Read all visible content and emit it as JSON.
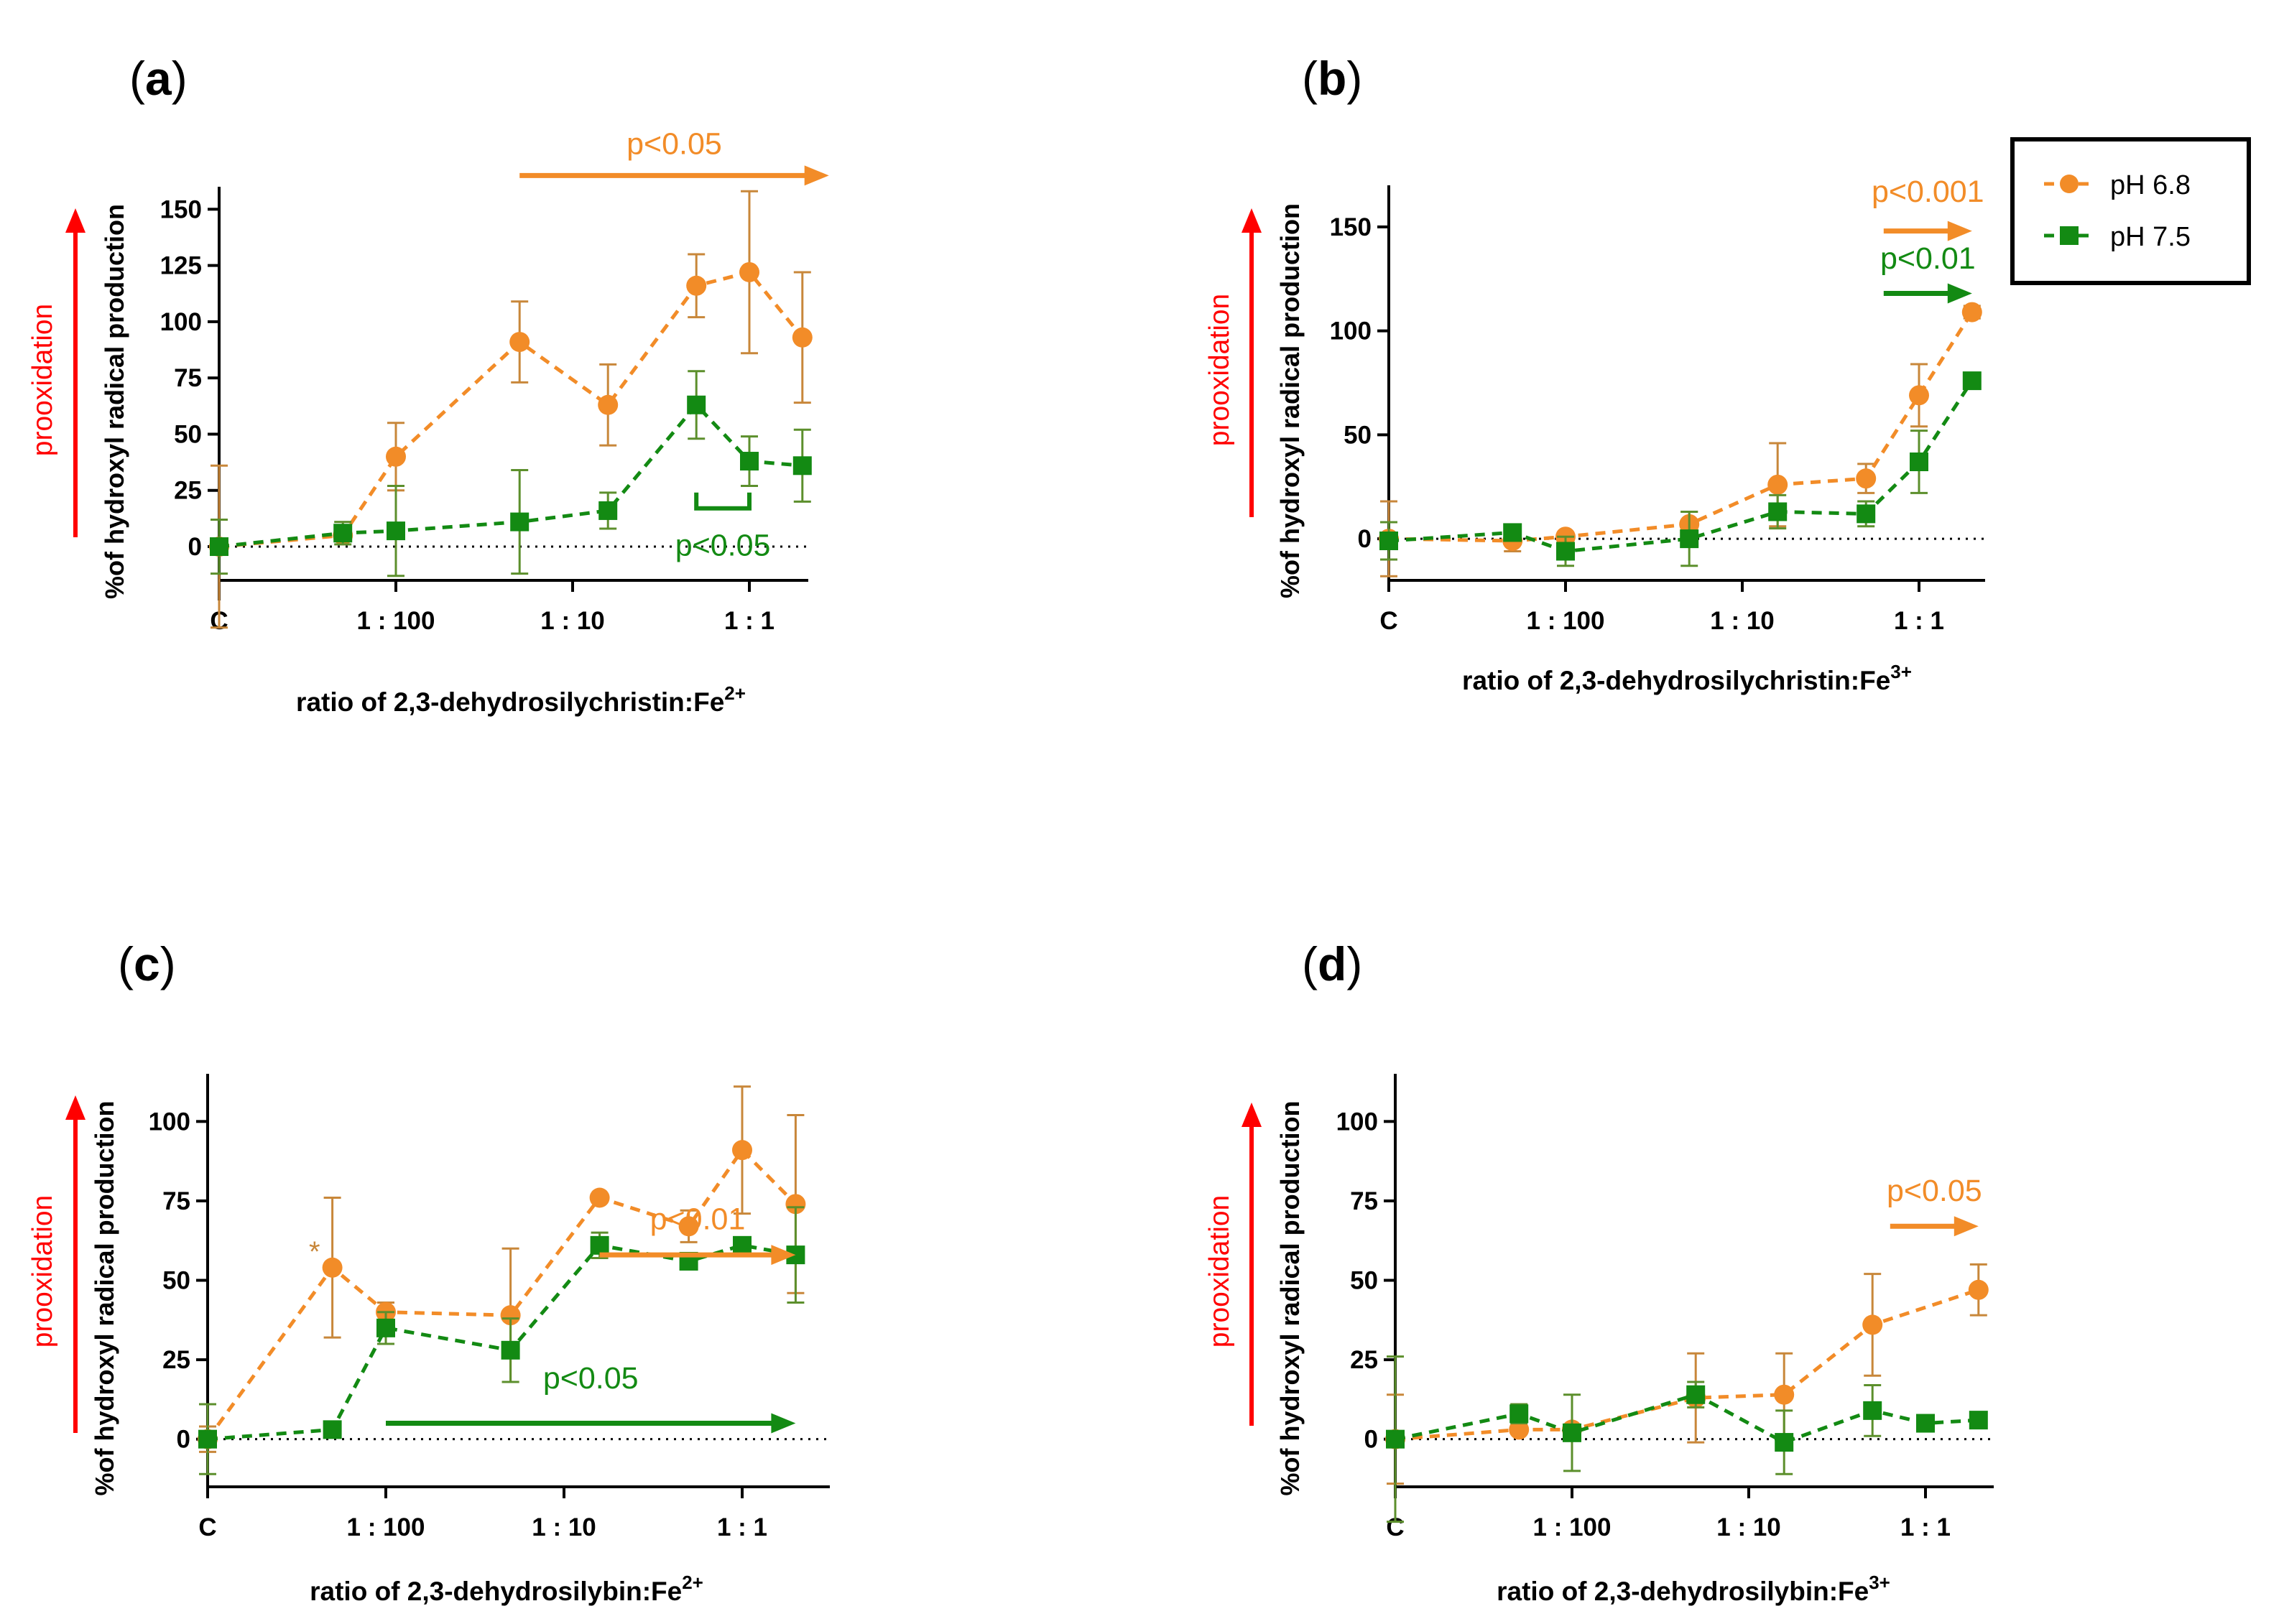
{
  "figure": {
    "series_legend": [
      {
        "name": "pH 6.8",
        "color": "#f28c28",
        "marker": "circle"
      },
      {
        "name": "pH 7.5",
        "color": "#138a13",
        "marker": "square"
      }
    ],
    "colors": {
      "orange": "#f28c28",
      "green": "#138a13",
      "orange_err": "#c8873a",
      "green_err": "#5c8f2c",
      "red": "#ff0000"
    }
  },
  "chart_data": [
    {
      "panel_label": "a",
      "type": "line",
      "xlabel": "ratio of 2,3-dehydrosilychristin:Fe",
      "xlabel_sup": "2+",
      "ylabel": "%of hydroxyl radical production",
      "side_label": "prooxidation",
      "ylim": [
        -15,
        160
      ],
      "yticks": [
        0,
        25,
        50,
        75,
        100,
        125,
        150
      ],
      "xticks": [
        {
          "label": "C",
          "pos": 0
        },
        {
          "label": "1 : 100",
          "pos": 2
        },
        {
          "label": "1 : 10",
          "pos": 4
        },
        {
          "label": "1 : 1",
          "pos": 6
        }
      ],
      "xlim": [
        0,
        6.6
      ],
      "series": [
        {
          "name": "pH 6.8",
          "x": [
            0,
            1.4,
            2,
            3.4,
            4.4,
            5.4,
            6,
            6.6
          ],
          "y": [
            0,
            5,
            40,
            91,
            63,
            116,
            122,
            93
          ],
          "err": [
            36,
            0,
            15,
            18,
            18,
            14,
            36,
            29
          ]
        },
        {
          "name": "pH 7.5",
          "x": [
            0,
            1.4,
            2,
            3.4,
            4.4,
            5.4,
            6,
            6.6
          ],
          "y": [
            0,
            6,
            7,
            11,
            16,
            63,
            38,
            36
          ],
          "err": [
            12,
            5,
            20,
            23,
            8,
            15,
            11,
            16
          ]
        }
      ],
      "annotations": [
        {
          "text": "p<0.05",
          "color": "orange",
          "arrow": [
            3.4,
            6.9
          ],
          "y": 165
        },
        {
          "text": "p<0.05",
          "color": "green",
          "bracket": [
            5.4,
            6.0
          ],
          "y": 17,
          "text_y": -4
        }
      ]
    },
    {
      "panel_label": "b",
      "type": "line",
      "xlabel": "ratio of 2,3-dehydrosilychristin:Fe",
      "xlabel_sup": "3+",
      "ylabel": "%of hydroxyl radical production",
      "side_label": "prooxidation",
      "ylim": [
        -20,
        170
      ],
      "yticks": [
        0,
        50,
        100,
        150
      ],
      "xticks": [
        {
          "label": "C",
          "pos": 0
        },
        {
          "label": "1 : 100",
          "pos": 2
        },
        {
          "label": "1 : 10",
          "pos": 4
        },
        {
          "label": "1 : 1",
          "pos": 6
        }
      ],
      "xlim": [
        0,
        6.6
      ],
      "series": [
        {
          "name": "pH 6.8",
          "x": [
            0,
            1.4,
            2,
            3.4,
            4.4,
            5.4,
            6,
            6.6
          ],
          "y": [
            0,
            -1,
            1,
            7,
            26,
            29,
            69,
            109
          ],
          "err": [
            18,
            5,
            0,
            6,
            20,
            7,
            15,
            3
          ]
        },
        {
          "name": "pH 7.5",
          "x": [
            0,
            1.4,
            2,
            3.4,
            4.4,
            5.4,
            6,
            6.6
          ],
          "y": [
            -1,
            3,
            -6,
            0,
            13,
            12,
            37,
            76
          ],
          "err": [
            9,
            0,
            7,
            13,
            8,
            6,
            15,
            0
          ]
        }
      ],
      "annotations": [
        {
          "text": "p<0.001",
          "color": "orange",
          "arrow": [
            5.6,
            6.6
          ],
          "y": 148,
          "text_y": 162
        },
        {
          "text": "p<0.01",
          "color": "green",
          "arrow": [
            5.6,
            6.6
          ],
          "y": 118,
          "text_y": 130
        }
      ]
    },
    {
      "panel_label": "c",
      "type": "line",
      "xlabel": "ratio of 2,3-dehydrosilybin:Fe",
      "xlabel_sup": "2+",
      "ylabel": "%of hydroxyl radical production",
      "side_label": "prooxidation",
      "ylim": [
        -15,
        115
      ],
      "yticks": [
        0,
        25,
        50,
        75,
        100
      ],
      "xticks": [
        {
          "label": "C",
          "pos": 0
        },
        {
          "label": "1 : 100",
          "pos": 2
        },
        {
          "label": "1 : 10",
          "pos": 4
        },
        {
          "label": "1 : 1",
          "pos": 6
        }
      ],
      "xlim": [
        0,
        6.6
      ],
      "series": [
        {
          "name": "pH 6.8",
          "x": [
            0,
            1.4,
            2,
            3.4,
            4.4,
            5.4,
            6,
            6.6
          ],
          "y": [
            0,
            54,
            40,
            39,
            76,
            67,
            91,
            74
          ],
          "err": [
            4,
            22,
            3,
            21,
            1,
            5,
            20,
            28
          ]
        },
        {
          "name": "pH 7.5",
          "x": [
            0,
            1.4,
            2,
            3.4,
            4.4,
            5.4,
            6,
            6.6
          ],
          "y": [
            0,
            3,
            35,
            28,
            61,
            56,
            61,
            58
          ],
          "err": [
            11,
            0,
            5,
            10,
            4,
            2,
            2,
            15
          ]
        }
      ],
      "annotations": [
        {
          "text": "p<0.01",
          "color": "orange",
          "arrow": [
            4.4,
            6.6
          ],
          "y": 58,
          "text_y": 66
        },
        {
          "text": "p<0.05",
          "color": "green",
          "arrow": [
            2.0,
            6.6
          ],
          "y": 5,
          "text_y": 16
        },
        {
          "text": "*",
          "color": "orange",
          "x": 1.2,
          "y": 56
        }
      ]
    },
    {
      "panel_label": "d",
      "type": "line",
      "xlabel": "ratio of 2,3-dehydrosilybin:Fe",
      "xlabel_sup": "3+",
      "ylabel": "%of hydroxyl radical production",
      "side_label": "prooxidation",
      "ylim": [
        -15,
        115
      ],
      "yticks": [
        0,
        25,
        50,
        75,
        100
      ],
      "xticks": [
        {
          "label": "C",
          "pos": 0
        },
        {
          "label": "1 : 100",
          "pos": 2
        },
        {
          "label": "1 : 10",
          "pos": 4
        },
        {
          "label": "1 : 1",
          "pos": 6
        }
      ],
      "xlim": [
        0,
        6.6
      ],
      "series": [
        {
          "name": "pH 6.8",
          "x": [
            0,
            1.4,
            2,
            3.4,
            4.4,
            5.4,
            6,
            6.6
          ],
          "y": [
            0,
            3,
            3,
            13,
            14,
            36,
            0,
            47
          ],
          "err": [
            14,
            0,
            0,
            14,
            13,
            16,
            0,
            8
          ],
          "skip": [
            6
          ]
        },
        {
          "name": "pH 7.5",
          "x": [
            0,
            1.4,
            2,
            3.4,
            4.4,
            5.4,
            6,
            6.6
          ],
          "y": [
            0,
            8,
            2,
            14,
            -1,
            9,
            5,
            6
          ],
          "err": [
            26,
            3,
            12,
            4,
            10,
            8,
            0,
            0
          ]
        }
      ],
      "annotations": [
        {
          "text": "p<0.05",
          "color": "orange",
          "arrow": [
            5.6,
            6.6
          ],
          "y": 67,
          "text_y": 75
        }
      ]
    }
  ]
}
